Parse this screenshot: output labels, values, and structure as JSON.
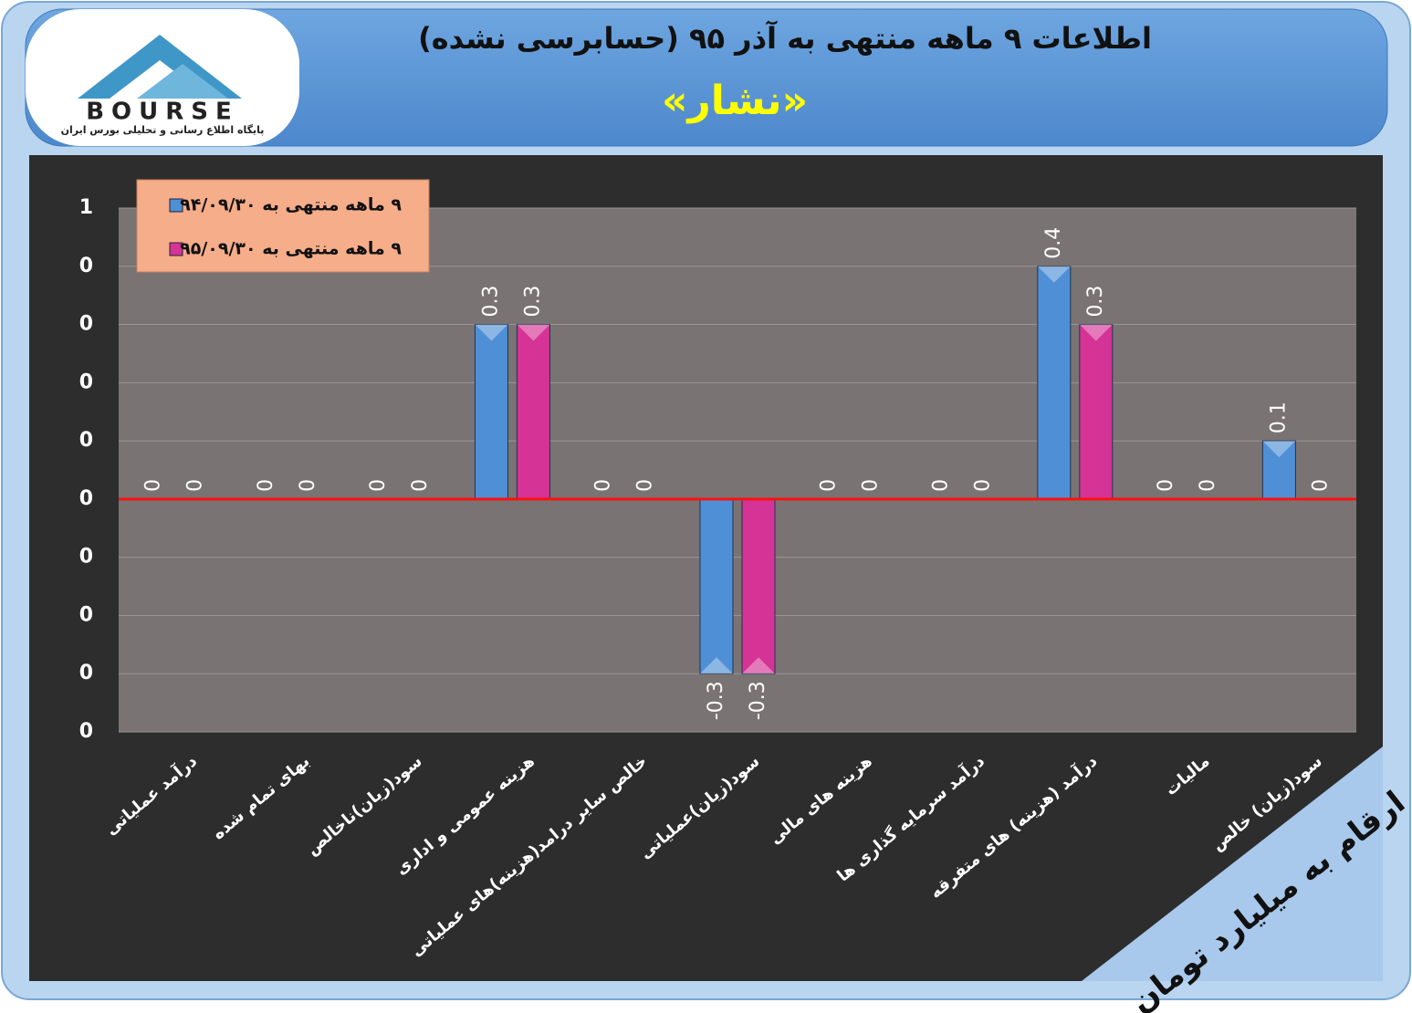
{
  "logo": {
    "name": "BOURSE",
    "tagline": "پایگاه اطلاع رسانی و تحلیلی بورس ایران"
  },
  "note": "ارقام به میلیارد تومان",
  "chart_data": {
    "type": "bar",
    "title": "اطلاعات ۹ ماهه منتهی به آذر ۹۵ (حسابرسی نشده)",
    "subtitle": "«نشار»",
    "categories": [
      "درآمد عملیاتی",
      "بهای تمام شده",
      "سود(زیان)ناخالص",
      "هزینه عمومی و اداری",
      "خالص سایر درامد(هزینه)های عملیاتی",
      "سود(زیان)عملیاتی",
      "هزینه های مالی",
      "درآمد سرمایه گذاری ها",
      "درآمد (هزینه) های متفرقه",
      "مالیات",
      "سود(زیان) خالص"
    ],
    "series": [
      {
        "name": "۹ ماهه منتهی به ۹۴/۰۹/۳۰",
        "color": "#4f8fd6",
        "values": [
          0,
          0,
          0,
          0.3,
          0,
          -0.3,
          0,
          0,
          0.4,
          0,
          0.1
        ]
      },
      {
        "name": "۹ ماهه منتهی به ۹۵/۰۹/۳۰",
        "color": "#d63396",
        "values": [
          0,
          0,
          0,
          0.3,
          0,
          -0.3,
          0,
          0,
          0.3,
          0,
          0
        ]
      }
    ],
    "ylim": [
      -0.4,
      0.5
    ],
    "yticks": [
      {
        "value": 0.5,
        "label": "1"
      },
      {
        "value": 0.4,
        "label": "0"
      },
      {
        "value": 0.3,
        "label": "0"
      },
      {
        "value": 0.2,
        "label": "0"
      },
      {
        "value": 0.1,
        "label": "0"
      },
      0,
      {
        "value": -0.1,
        "label": "0"
      },
      {
        "value": -0.2,
        "label": "0"
      },
      {
        "value": -0.3,
        "label": "0"
      },
      {
        "value": -0.4,
        "label": "0"
      }
    ],
    "grid": true,
    "legend": "top-left"
  }
}
